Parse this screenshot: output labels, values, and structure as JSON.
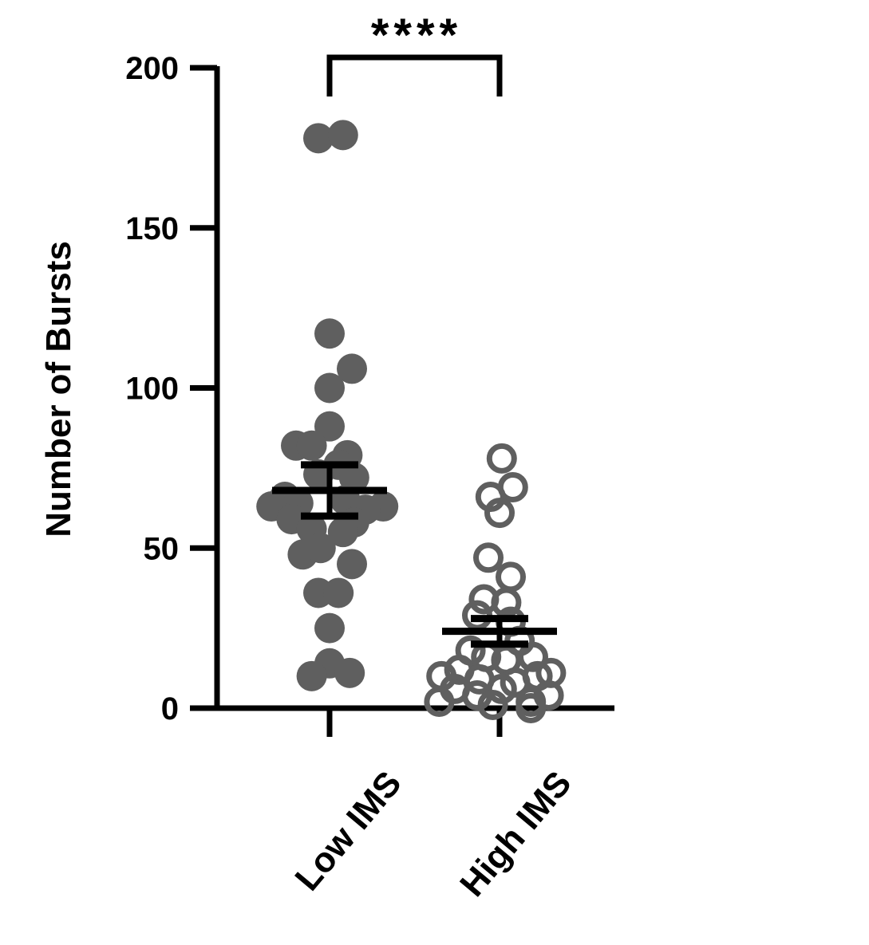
{
  "chart_data": {
    "type": "scatter",
    "title": "",
    "xlabel": "",
    "ylabel": "Number of Bursts",
    "ylim": [
      0,
      200
    ],
    "yticks": [
      0,
      50,
      100,
      150,
      200
    ],
    "categories": [
      "Low  IMS",
      "High IMS"
    ],
    "grid": false,
    "legend": "none",
    "significance": {
      "label": "****",
      "between": [
        "Low  IMS",
        "High IMS"
      ]
    },
    "series": [
      {
        "category": "Low  IMS",
        "marker": "filled-circle",
        "color": "#5f5f5f",
        "mean": 68,
        "sem_low": 60,
        "sem_high": 76,
        "points": [
          {
            "offset": -0.05,
            "y": 178
          },
          {
            "offset": 0.06,
            "y": 179
          },
          {
            "offset": 0.0,
            "y": 117
          },
          {
            "offset": 0.1,
            "y": 106
          },
          {
            "offset": 0.0,
            "y": 100
          },
          {
            "offset": 0.0,
            "y": 88
          },
          {
            "offset": -0.15,
            "y": 82
          },
          {
            "offset": -0.08,
            "y": 82
          },
          {
            "offset": 0.08,
            "y": 79
          },
          {
            "offset": 0.04,
            "y": 76
          },
          {
            "offset": -0.05,
            "y": 73
          },
          {
            "offset": 0.11,
            "y": 72
          },
          {
            "offset": -0.2,
            "y": 66
          },
          {
            "offset": 0.07,
            "y": 65
          },
          {
            "offset": -0.14,
            "y": 64
          },
          {
            "offset": 0.24,
            "y": 63
          },
          {
            "offset": 0.16,
            "y": 62
          },
          {
            "offset": -0.26,
            "y": 63
          },
          {
            "offset": -0.17,
            "y": 59
          },
          {
            "offset": 0.11,
            "y": 58
          },
          {
            "offset": -0.08,
            "y": 56
          },
          {
            "offset": 0.06,
            "y": 55
          },
          {
            "offset": -0.12,
            "y": 48
          },
          {
            "offset": -0.04,
            "y": 50
          },
          {
            "offset": 0.1,
            "y": 45
          },
          {
            "offset": -0.05,
            "y": 36
          },
          {
            "offset": 0.04,
            "y": 36
          },
          {
            "offset": 0.0,
            "y": 25
          },
          {
            "offset": 0.0,
            "y": 14
          },
          {
            "offset": -0.08,
            "y": 10
          },
          {
            "offset": 0.09,
            "y": 11
          }
        ]
      },
      {
        "category": "High IMS",
        "marker": "open-circle",
        "color": "#5f5f5f",
        "mean": 24,
        "sem_low": 20,
        "sem_high": 28,
        "points": [
          {
            "offset": 0.01,
            "y": 78
          },
          {
            "offset": 0.06,
            "y": 69
          },
          {
            "offset": -0.04,
            "y": 66
          },
          {
            "offset": 0.0,
            "y": 61
          },
          {
            "offset": -0.05,
            "y": 47
          },
          {
            "offset": 0.05,
            "y": 41
          },
          {
            "offset": -0.07,
            "y": 34
          },
          {
            "offset": 0.03,
            "y": 33
          },
          {
            "offset": -0.1,
            "y": 29
          },
          {
            "offset": 0.05,
            "y": 27
          },
          {
            "offset": 0.09,
            "y": 21
          },
          {
            "offset": -0.13,
            "y": 18
          },
          {
            "offset": -0.06,
            "y": 16
          },
          {
            "offset": 0.15,
            "y": 16
          },
          {
            "offset": 0.03,
            "y": 15
          },
          {
            "offset": -0.18,
            "y": 12
          },
          {
            "offset": 0.23,
            "y": 11
          },
          {
            "offset": -0.26,
            "y": 10
          },
          {
            "offset": 0.17,
            "y": 10
          },
          {
            "offset": -0.09,
            "y": 9
          },
          {
            "offset": 0.07,
            "y": 8
          },
          {
            "offset": -0.2,
            "y": 6
          },
          {
            "offset": 0.01,
            "y": 6
          },
          {
            "offset": -0.1,
            "y": 4
          },
          {
            "offset": 0.22,
            "y": 4
          },
          {
            "offset": -0.27,
            "y": 2
          },
          {
            "offset": 0.14,
            "y": 2
          },
          {
            "offset": -0.03,
            "y": 1
          },
          {
            "offset": 0.14,
            "y": 0
          }
        ]
      }
    ]
  }
}
